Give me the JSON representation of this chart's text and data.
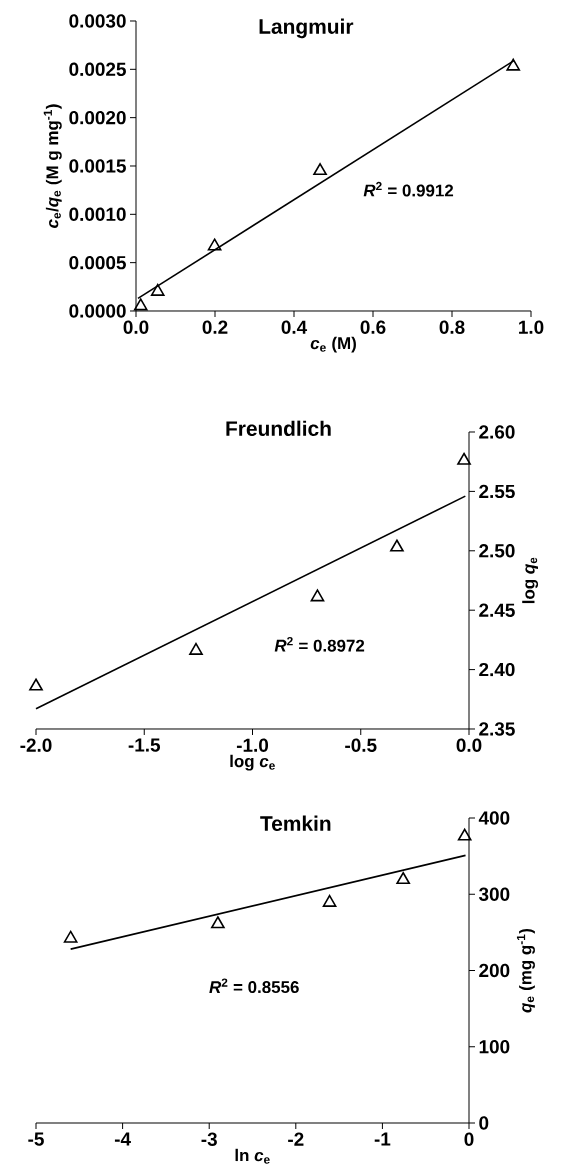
{
  "chart_data": [
    {
      "type": "scatter",
      "title": "Langmuir",
      "xlabel": "*c*$_{e}$ (M)",
      "ylabel": "*c*$_{e}$/*q*$_{e}$ (M g mg$^{-1}$)",
      "xlim": [
        0,
        1
      ],
      "ylim": [
        0,
        0.003
      ],
      "xticks": [
        {
          "value": 0,
          "label": "0.0"
        },
        {
          "value": 0.2,
          "label": "0.2"
        },
        {
          "value": 0.4,
          "label": "0.4"
        },
        {
          "value": 0.6,
          "label": "0.6"
        },
        {
          "value": 0.8,
          "label": "0.8"
        },
        {
          "value": 1,
          "label": "1.0"
        }
      ],
      "yticks": [
        {
          "value": 0,
          "label": "0.0000"
        },
        {
          "value": 0.0005,
          "label": "0.0005"
        },
        {
          "value": 0.001,
          "label": "0.0010"
        },
        {
          "value": 0.0015,
          "label": "0.0015"
        },
        {
          "value": 0.002,
          "label": "0.0020"
        },
        {
          "value": 0.0025,
          "label": "0.0025"
        },
        {
          "value": 0.003,
          "label": "0.0030"
        }
      ],
      "series": [
        {
          "marker": "triangle",
          "color": "#000000",
          "x": [
            0.012,
            0.055,
            0.199,
            0.466,
            0.955
          ],
          "values": [
            5e-05,
            0.0002,
            0.00067,
            0.00145,
            0.00253
          ]
        },
        {
          "type": "line",
          "line_style": "solid",
          "color": "#000000",
          "x": [
            0.005,
            0.957
          ],
          "values": [
            0.00013,
            0.00259
          ]
        }
      ],
      "annotations": [
        "*R*$^{2}$ = 0.9912"
      ]
    },
    {
      "type": "scatter",
      "title": "Freundlich",
      "xlabel": "log *c*$_{e}$",
      "ylabel": "log *q*$_{e}$",
      "xlim": [
        -2,
        0
      ],
      "ylim": [
        2.35,
        2.6
      ],
      "xticks": [
        {
          "value": -2,
          "label": "-2.0"
        },
        {
          "value": -1.5,
          "label": "-1.5"
        },
        {
          "value": -1,
          "label": "-1.0"
        },
        {
          "value": -0.5,
          "label": "-0.5"
        },
        {
          "value": 0,
          "label": "0.0"
        }
      ],
      "yticks": [
        2.35,
        {
          "value": 2.4,
          "label": "2.40"
        },
        2.45,
        {
          "value": 2.5,
          "label": "2.50"
        },
        2.55,
        {
          "value": 2.6,
          "label": "2.60"
        }
      ],
      "series": [
        {
          "marker": "triangle",
          "color": "#000000",
          "x": [
            -2.0,
            -1.261,
            -0.7,
            -0.333,
            -0.023
          ],
          "values": [
            2.386,
            2.416,
            2.461,
            2.503,
            2.576
          ]
        },
        {
          "type": "line",
          "line_style": "solid",
          "color": "#000000",
          "x": [
            -2.0,
            -0.017
          ],
          "values": [
            2.367,
            2.546
          ]
        }
      ],
      "annotations": [
        "*R*$^{2}$ = 0.8972"
      ]
    },
    {
      "type": "scatter",
      "title": "Temkin",
      "xlabel": "ln *c*$_{e}$",
      "ylabel": "*q*$_{e}$ (mg g$^{-1}$)",
      "xlim": [
        -5,
        0
      ],
      "ylim": [
        0,
        400
      ],
      "xticks": [
        -5,
        -4,
        -3,
        -2,
        -1,
        0
      ],
      "yticks": [
        0,
        100,
        200,
        300,
        400
      ],
      "series": [
        {
          "marker": "triangle",
          "color": "#000000",
          "x": [
            -4.6,
            -2.9,
            -1.61,
            -0.76,
            -0.05
          ],
          "values": [
            242,
            261,
            289,
            319,
            376
          ]
        },
        {
          "type": "line",
          "line_style": "solid",
          "color": "#000000",
          "x": [
            -4.6,
            -0.04
          ],
          "values": [
            228,
            351
          ]
        }
      ],
      "annotations": [
        "*R*$^{2}$ = 0.8556"
      ]
    }
  ]
}
